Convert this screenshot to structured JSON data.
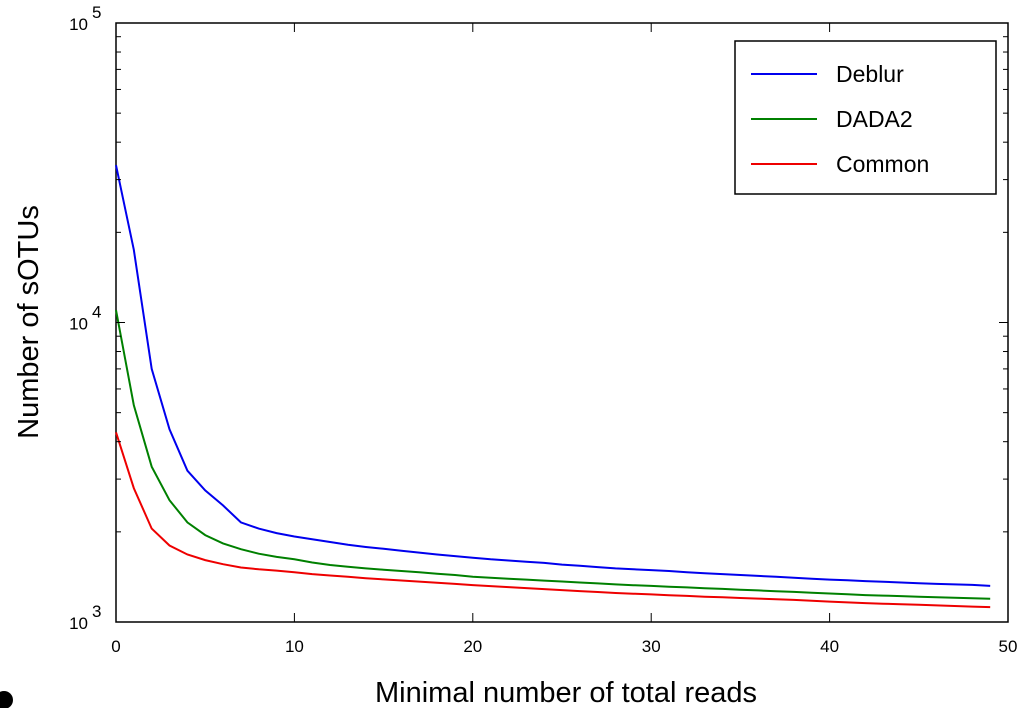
{
  "chart_data": {
    "type": "line",
    "xlabel": "Minimal number of total reads",
    "ylabel": "Number of sOTUs",
    "xlim": [
      0,
      50
    ],
    "ylim": [
      1000,
      100000
    ],
    "yscale": "log",
    "x_ticks": [
      0,
      10,
      20,
      30,
      40,
      50
    ],
    "y_ticks": [
      {
        "value": 1000,
        "base": "10",
        "exp": "3"
      },
      {
        "value": 10000,
        "base": "10",
        "exp": "4"
      },
      {
        "value": 100000,
        "base": "10",
        "exp": "5"
      }
    ],
    "grid": false,
    "legend": "top-right",
    "x": [
      0,
      1,
      2,
      3,
      4,
      5,
      6,
      7,
      8,
      9,
      10,
      11,
      12,
      13,
      14,
      15,
      16,
      17,
      18,
      19,
      20,
      21,
      22,
      23,
      24,
      25,
      26,
      27,
      28,
      29,
      30,
      31,
      32,
      33,
      34,
      35,
      36,
      37,
      38,
      39,
      40,
      41,
      42,
      43,
      44,
      45,
      46,
      47,
      48,
      49
    ],
    "series": [
      {
        "name": "Deblur",
        "color": "#0000ee",
        "values": [
          33500,
          17500,
          7000,
          4400,
          3200,
          2750,
          2450,
          2150,
          2050,
          1980,
          1930,
          1890,
          1850,
          1810,
          1780,
          1755,
          1730,
          1705,
          1680,
          1660,
          1640,
          1620,
          1605,
          1590,
          1575,
          1555,
          1540,
          1525,
          1510,
          1500,
          1490,
          1480,
          1465,
          1455,
          1445,
          1435,
          1425,
          1415,
          1405,
          1395,
          1385,
          1378,
          1370,
          1363,
          1355,
          1348,
          1340,
          1335,
          1330,
          1320
        ]
      },
      {
        "name": "DADA2",
        "color": "#008000",
        "values": [
          11000,
          5300,
          3300,
          2550,
          2150,
          1950,
          1830,
          1750,
          1690,
          1650,
          1620,
          1580,
          1550,
          1530,
          1510,
          1495,
          1480,
          1465,
          1450,
          1435,
          1415,
          1405,
          1395,
          1385,
          1375,
          1365,
          1355,
          1345,
          1335,
          1327,
          1320,
          1312,
          1305,
          1297,
          1290,
          1282,
          1275,
          1267,
          1260,
          1252,
          1245,
          1237,
          1230,
          1225,
          1220,
          1215,
          1210,
          1205,
          1200,
          1195
        ]
      },
      {
        "name": "Common",
        "color": "#ee0000",
        "values": [
          4300,
          2800,
          2050,
          1800,
          1680,
          1610,
          1560,
          1520,
          1500,
          1485,
          1465,
          1445,
          1430,
          1415,
          1400,
          1388,
          1376,
          1364,
          1352,
          1340,
          1328,
          1318,
          1308,
          1298,
          1288,
          1278,
          1268,
          1259,
          1250,
          1243,
          1236,
          1229,
          1222,
          1215,
          1209,
          1203,
          1197,
          1191,
          1185,
          1178,
          1170,
          1163,
          1156,
          1151,
          1146,
          1141,
          1136,
          1131,
          1126,
          1121
        ]
      }
    ]
  }
}
